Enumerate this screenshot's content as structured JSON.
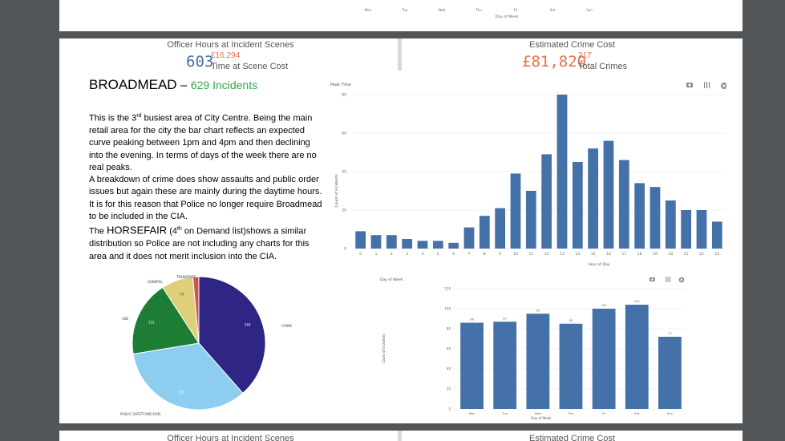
{
  "top_page": {
    "x_ticks": [
      "Mon",
      "Tue",
      "Wed",
      "Thu",
      "Fri",
      "Sat",
      "Sun"
    ],
    "x_label": "Day of Week"
  },
  "kpi_left": {
    "title": "Officer Hours at Incident Scenes",
    "value": "603",
    "cost": "£16,294",
    "sub": "Time at Scene Cost"
  },
  "kpi_right": {
    "title": "Estimated Crime Cost",
    "value": "£81,820",
    "count": "217",
    "sub": "Total Crimes"
  },
  "area": {
    "name": "BROADMEAD",
    "separator": "–",
    "incidents": "629 Incidents"
  },
  "description": {
    "line1_pre": "This is the 3",
    "line1_sup": "rd",
    "line1_post": " busiest area of City Centre.  Being the main retail area for the city the bar chart reflects an expected curve peaking between 1pm and 4pm and then declining into the evening.   In terms of days of the week there are no real peaks.",
    "line2": "A breakdown of crime does show assaults and public order issues but again these are mainly during the daytime hours.",
    "line3": "It is for this reason that Police no longer require Broadmead to be included in the CIA.",
    "line4_pre": "The ",
    "line4_name": "HORSEFAIR",
    "line4_mid": " (4",
    "line4_sup": "th",
    "line4_mid2": " on Demand list)",
    "line4_post": "shows a similar distribution so Police are not including any charts for this area and it does not merit inclusion into the CIA."
  },
  "colors": {
    "bar": "#4472a8",
    "kpi_value_blue": "#4a6fa5",
    "kpi_orange": "#e8704a",
    "incidents_green": "#2fa84f",
    "pie_crime": "#2f2584",
    "pie_public": "#8ccdf0",
    "pie_asb": "#1e7d35",
    "pie_general": "#ded07a",
    "pie_transport": "#c7555a"
  },
  "icons": [
    "camera-icon",
    "settings-icon",
    "close-icon"
  ],
  "chart_data": [
    {
      "type": "bar",
      "title": "Peak Time",
      "xlabel": "Hour of Day",
      "ylabel": "Count of Incidents",
      "categories": [
        "0",
        "1",
        "2",
        "3",
        "4",
        "5",
        "6",
        "7",
        "8",
        "9",
        "10",
        "11",
        "12",
        "13",
        "14",
        "15",
        "16",
        "17",
        "18",
        "19",
        "20",
        "21",
        "22",
        "23"
      ],
      "values": [
        9,
        7,
        7,
        5,
        4,
        4,
        3,
        11,
        17,
        21,
        39,
        30,
        49,
        80,
        45,
        52,
        56,
        46,
        34,
        32,
        25,
        20,
        20,
        14
      ],
      "yticks": [
        "0",
        "20",
        "40",
        "60",
        "80"
      ],
      "ylim": [
        0,
        80
      ]
    },
    {
      "type": "bar",
      "title": "Day of Week",
      "xlabel": "Day of Week",
      "ylabel": "Count of Incidents",
      "categories": [
        "Mon",
        "Tue",
        "Wed",
        "Thu",
        "Fri",
        "Sat",
        "Sun"
      ],
      "values": [
        86,
        87,
        95,
        85,
        100,
        104,
        72
      ],
      "data_labels": [
        "86",
        "87",
        "95",
        "85",
        "100",
        "104",
        "72"
      ],
      "yticks": [
        "0",
        "20",
        "40",
        "60",
        "80",
        "100",
        "120"
      ],
      "ylim": [
        0,
        120
      ]
    },
    {
      "type": "pie",
      "slices": [
        {
          "label": "CRIME",
          "value": 240,
          "value_label": "240",
          "color": "#2f2584"
        },
        {
          "label": "PUBLIC SAFETY/WELFARE",
          "value": 211,
          "value_label": "211",
          "color": "#8ccdf0"
        },
        {
          "label": "ASB",
          "value": 115,
          "value_label": "115",
          "color": "#1e7d35"
        },
        {
          "label": "GENERAL",
          "value": 48,
          "value_label": "48",
          "color": "#ded07a"
        },
        {
          "label": "TRANSPORT",
          "value": 9,
          "value_label": "",
          "color": "#c7555a"
        }
      ]
    }
  ]
}
